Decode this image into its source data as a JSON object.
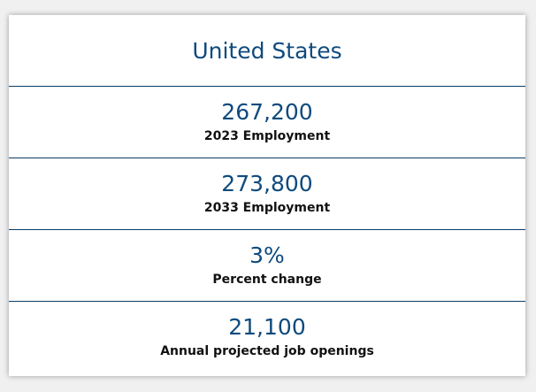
{
  "region": {
    "title": "United States"
  },
  "stats": [
    {
      "value": "267,200",
      "label": "2023 Employment"
    },
    {
      "value": "273,800",
      "label": "2033 Employment"
    },
    {
      "value": "3%",
      "label": "Percent change"
    },
    {
      "value": "21,100",
      "label": "Annual projected job openings"
    }
  ],
  "colors": {
    "accent": "#0e4a7d",
    "divider": "#0a3d66",
    "label": "#111111"
  }
}
